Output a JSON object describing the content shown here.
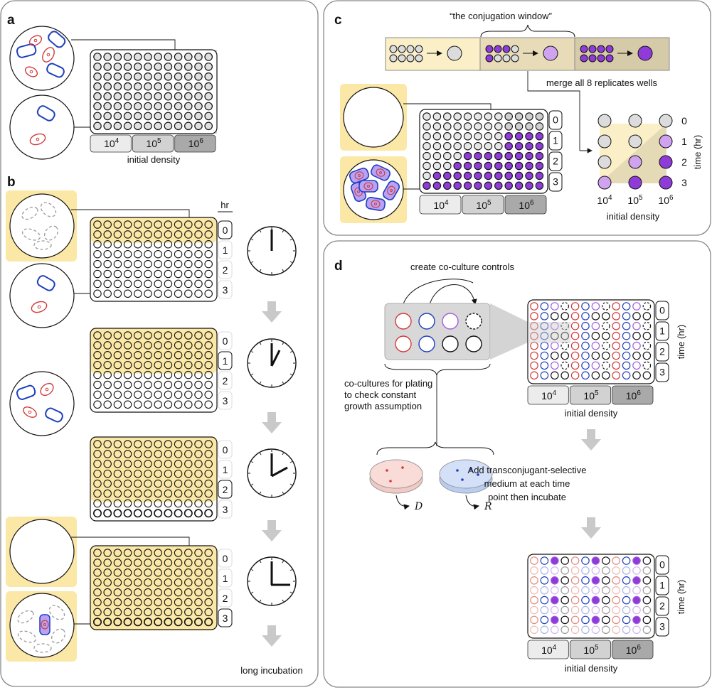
{
  "panels": {
    "a": {
      "label": "a",
      "density_labels": [
        "10^4",
        "10^5",
        "10^6"
      ],
      "axis_label": "initial density"
    },
    "b": {
      "label": "b",
      "hr_header": "hr",
      "time_labels": [
        "0",
        "1",
        "2",
        "3"
      ],
      "footer": "long incubation"
    },
    "c": {
      "label": "c",
      "window_label": "“the conjugation window”",
      "merge_label": "merge all 8 replicates wells",
      "time_labels": [
        "0",
        "1",
        "2",
        "3"
      ],
      "density_labels": [
        "10^4",
        "10^5",
        "10^6"
      ],
      "axis_label": "initial density",
      "time_axis": "time (hr)"
    },
    "d": {
      "label": "d",
      "controls_label": "create co-culture controls",
      "coculture_label": [
        "co-cultures for plating",
        "to check constant",
        "growth assumption"
      ],
      "plate_D": "D",
      "plate_R": "R",
      "step_label": [
        "Add transconjugant-selective",
        "medium at each time",
        "point then incubate"
      ],
      "time_labels": [
        "0",
        "1",
        "2",
        "3"
      ],
      "density_labels": [
        "10^4",
        "10^5",
        "10^6"
      ],
      "axis_label": "initial density",
      "time_axis": "time (hr)"
    }
  },
  "colors": {
    "donor": "#d23a3a",
    "recipient": "#1f3fbf",
    "transconjugant": "#8e3bd8",
    "transconjugant_light": "#cfa3f0",
    "highlight": "#fbe8a6",
    "grey_well": "#dcdcdc"
  }
}
